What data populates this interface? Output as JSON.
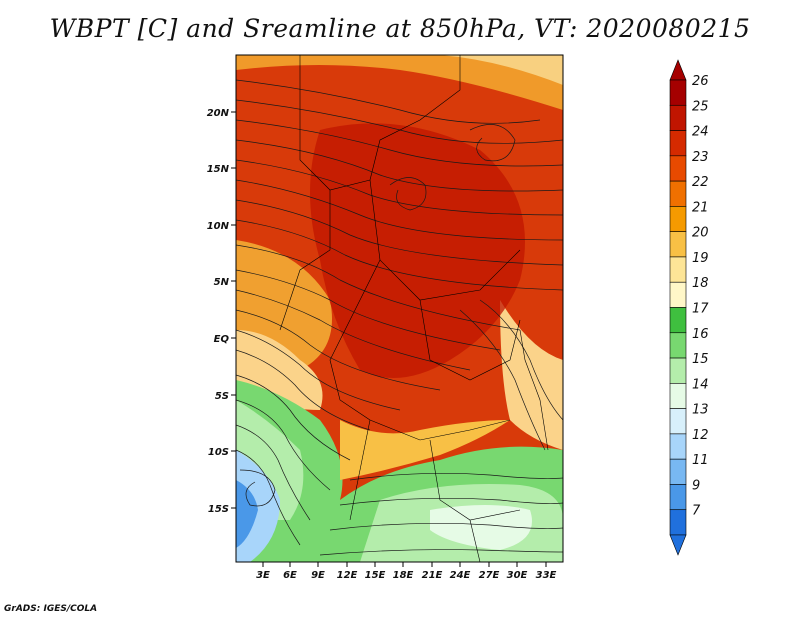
{
  "title": "WBPT [C] and Sreamline at 850hPa, VT: 2020080215",
  "credit": "GrADS: IGES/COLA",
  "map": {
    "lat_ticks": [
      "20N",
      "15N",
      "10N",
      "5N",
      "EQ",
      "5S",
      "10S",
      "15S"
    ],
    "lon_ticks": [
      "3E",
      "6E",
      "9E",
      "12E",
      "15E",
      "18E",
      "21E",
      "24E",
      "27E",
      "30E",
      "33E"
    ]
  },
  "colorbar": {
    "levels": [
      "26",
      "25",
      "24",
      "23",
      "22",
      "21",
      "20",
      "19",
      "18",
      "17",
      "16",
      "15",
      "14",
      "13",
      "12",
      "11",
      "9",
      "7"
    ],
    "colors": [
      "#a50000",
      "#c01500",
      "#d52a00",
      "#e84a00",
      "#f07000",
      "#f59a00",
      "#f8c045",
      "#fde597",
      "#fff7c8",
      "#3fbf3f",
      "#78d870",
      "#b4edab",
      "#e6fbe6",
      "#d8f0fb",
      "#a8d5fa",
      "#78b8f2",
      "#4a98e8",
      "#2070dd"
    ]
  }
}
